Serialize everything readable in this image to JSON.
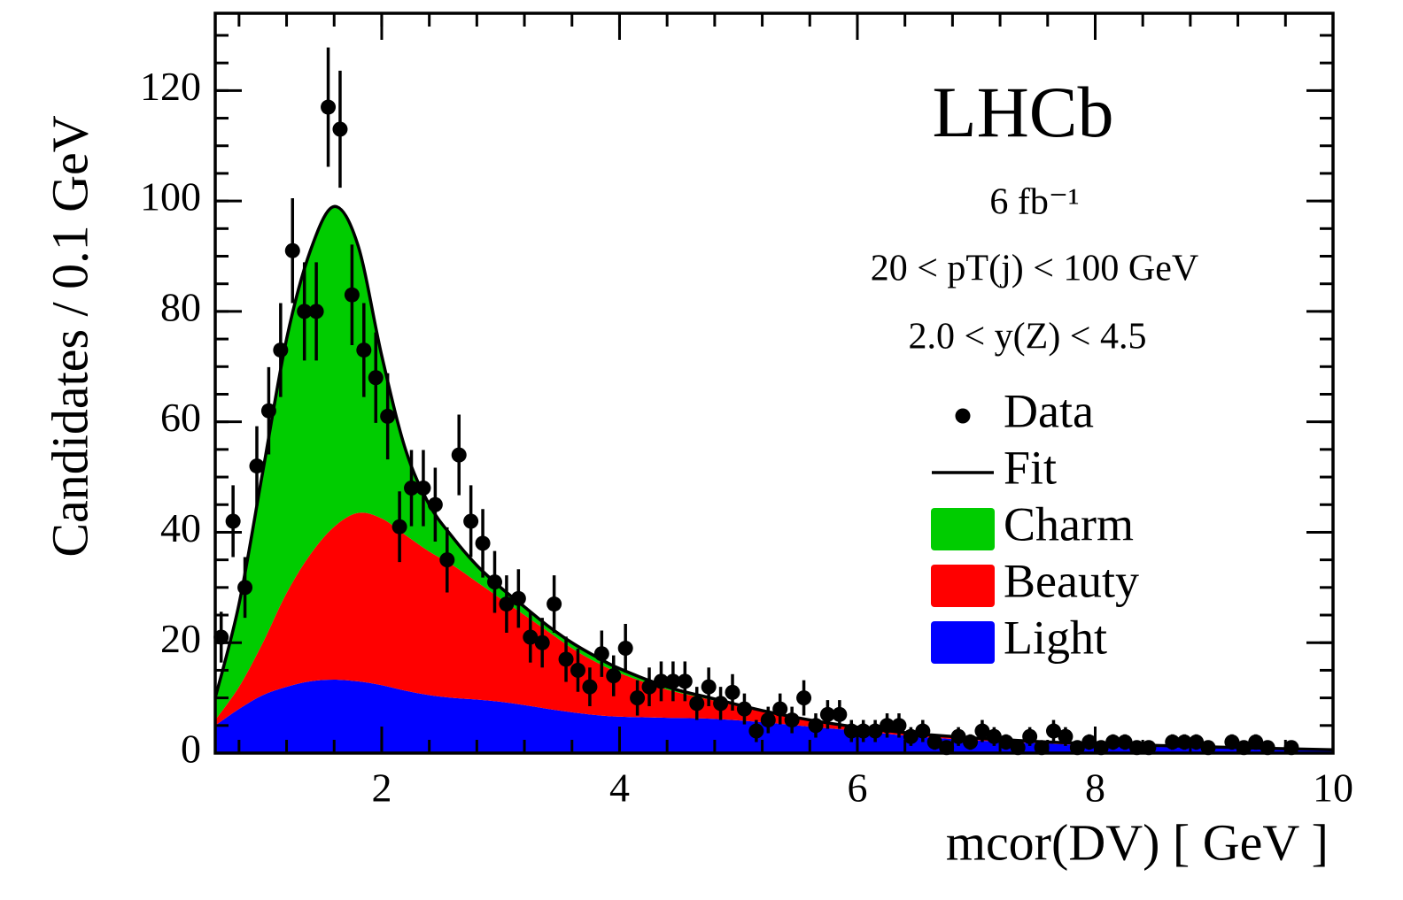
{
  "chart_data": {
    "type": "fit",
    "title": "LHCb",
    "annotations": [
      "6 fb⁻¹",
      "20 < pT(j) < 100 GeV",
      "2.0 < y(Z) < 4.5"
    ],
    "x_label": "mcor(DV) [ GeV ]",
    "y_label": "Candidates / 0.1 GeV",
    "xlim": [
      0.6,
      10
    ],
    "xticks": [
      2,
      4,
      6,
      8,
      10
    ],
    "x_minor_divisions": 5,
    "ylim": [
      0,
      134
    ],
    "yticks": [
      0,
      20,
      40,
      60,
      80,
      100,
      120
    ],
    "y_minor_divisions": 4,
    "curve_x": [
      0.6,
      0.8,
      1.0,
      1.2,
      1.4,
      1.6,
      1.8,
      2.0,
      2.2,
      2.4,
      2.6,
      2.8,
      3.0,
      3.2,
      3.4,
      3.6,
      3.8,
      4.0,
      4.4,
      4.8,
      5.2,
      5.6,
      6.0,
      6.5,
      7,
      7.5,
      8,
      9,
      10
    ],
    "series": [
      {
        "name": "Data",
        "style": "points",
        "color": "#000000",
        "x": [
          0.65,
          0.75,
          0.85,
          0.95,
          1.05,
          1.15,
          1.25,
          1.35,
          1.45,
          1.55,
          1.65,
          1.75,
          1.85,
          1.95,
          2.05,
          2.15,
          2.25,
          2.35,
          2.45,
          2.55,
          2.65,
          2.75,
          2.85,
          2.95,
          3.05,
          3.15,
          3.25,
          3.35,
          3.45,
          3.55,
          3.65,
          3.75,
          3.85,
          3.95,
          4.05,
          4.15,
          4.25,
          4.35,
          4.45,
          4.55,
          4.65,
          4.75,
          4.85,
          4.95,
          5.05,
          5.15,
          5.25,
          5.35,
          5.45,
          5.55,
          5.65,
          5.75,
          5.85,
          5.95,
          6.05,
          6.15,
          6.25,
          6.35,
          6.45,
          6.55,
          6.65,
          6.75,
          6.85,
          6.95,
          7.05,
          7.15,
          7.25,
          7.35,
          7.45,
          7.55,
          7.65,
          7.75,
          7.85,
          7.95,
          8.05,
          8.15,
          8.25,
          8.35,
          8.45,
          8.65,
          8.75,
          8.85,
          8.95,
          9.15,
          9.25,
          9.35,
          9.45,
          9.65
        ],
        "values": [
          21,
          42,
          30,
          52,
          62,
          73,
          91,
          80,
          80,
          117,
          113,
          83,
          73,
          68,
          61,
          41,
          48,
          48,
          45,
          35,
          54,
          42,
          38,
          31,
          27,
          28,
          21,
          20,
          27,
          17,
          15,
          12,
          18,
          14,
          19,
          10,
          12,
          13,
          13,
          13,
          9,
          12,
          9,
          11,
          8,
          4,
          6,
          8,
          6,
          10,
          5,
          7,
          7,
          4,
          4,
          4,
          5,
          5,
          3,
          4,
          2,
          1,
          3,
          2,
          4,
          3,
          2,
          1,
          3,
          1,
          4,
          3,
          1,
          2,
          1,
          2,
          2,
          1,
          1,
          2,
          2,
          2,
          1,
          2,
          1,
          2,
          1,
          1
        ],
        "errors": [
          4.6,
          6.5,
          5.5,
          7.2,
          7.9,
          8.5,
          9.5,
          8.9,
          8.9,
          10.8,
          10.6,
          9.1,
          8.5,
          8.2,
          7.8,
          6.4,
          6.9,
          6.9,
          6.7,
          5.9,
          7.3,
          6.5,
          6.2,
          5.6,
          5.2,
          5.3,
          4.6,
          4.5,
          5.2,
          4.1,
          3.9,
          3.5,
          4.2,
          3.7,
          4.4,
          3.2,
          3.5,
          3.6,
          3.6,
          3.6,
          3,
          3.5,
          3,
          3.3,
          2.8,
          2,
          2.4,
          2.8,
          2.4,
          3.2,
          2.2,
          2.6,
          2.6,
          2,
          2,
          2,
          2.2,
          2.2,
          1.7,
          2,
          1.4,
          1,
          1.7,
          1.4,
          2,
          1.7,
          1.4,
          1,
          1.7,
          1,
          2,
          1.7,
          1,
          1.4,
          1,
          1.4,
          1.4,
          1,
          1,
          1.4,
          1.4,
          1.4,
          1,
          1.4,
          1,
          1.4,
          1,
          1
        ]
      },
      {
        "name": "Fit",
        "style": "line",
        "color": "#000000",
        "values": [
          10,
          27,
          51,
          75,
          91,
          99,
          92,
          72,
          55,
          45,
          39,
          34,
          30,
          26.5,
          23,
          20,
          17.5,
          15.3,
          12,
          9.8,
          7.7,
          6,
          4.7,
          3.5,
          2.7,
          2.1,
          1.7,
          1.1,
          0.6
        ]
      },
      {
        "name": "Charm",
        "style": "area",
        "color": "#00cc00",
        "values": [
          4,
          15,
          31,
          46,
          55,
          58,
          48.5,
          29.5,
          15.5,
          8.5,
          5,
          3,
          2,
          1.5,
          1,
          1,
          1,
          0.8,
          0.5,
          0.3,
          0.2,
          0.2,
          0.1,
          0.1,
          0.1,
          0.1,
          0.1,
          0.1,
          0
        ]
      },
      {
        "name": "Beauty",
        "style": "area",
        "color": "#ff0000",
        "values": [
          1,
          4,
          9.5,
          17,
          23,
          27.7,
          30.5,
          30.2,
          28.2,
          26,
          24,
          21.3,
          18.7,
          16.3,
          14,
          11.6,
          9.6,
          7.9,
          5.1,
          3.3,
          1.9,
          1.0,
          0.6,
          0.4,
          0.3,
          0.2,
          0.2,
          0.1,
          0.1
        ]
      },
      {
        "name": "Light",
        "style": "area",
        "color": "#0000ff",
        "values": [
          5,
          8,
          10.5,
          12,
          13,
          13.3,
          13,
          12.3,
          11.3,
          10.5,
          10,
          9.7,
          9.3,
          8.7,
          8,
          7.4,
          6.9,
          6.6,
          6.4,
          6.2,
          5.6,
          4.8,
          4,
          3,
          2.3,
          1.8,
          1.4,
          0.9,
          0.5
        ]
      }
    ]
  }
}
